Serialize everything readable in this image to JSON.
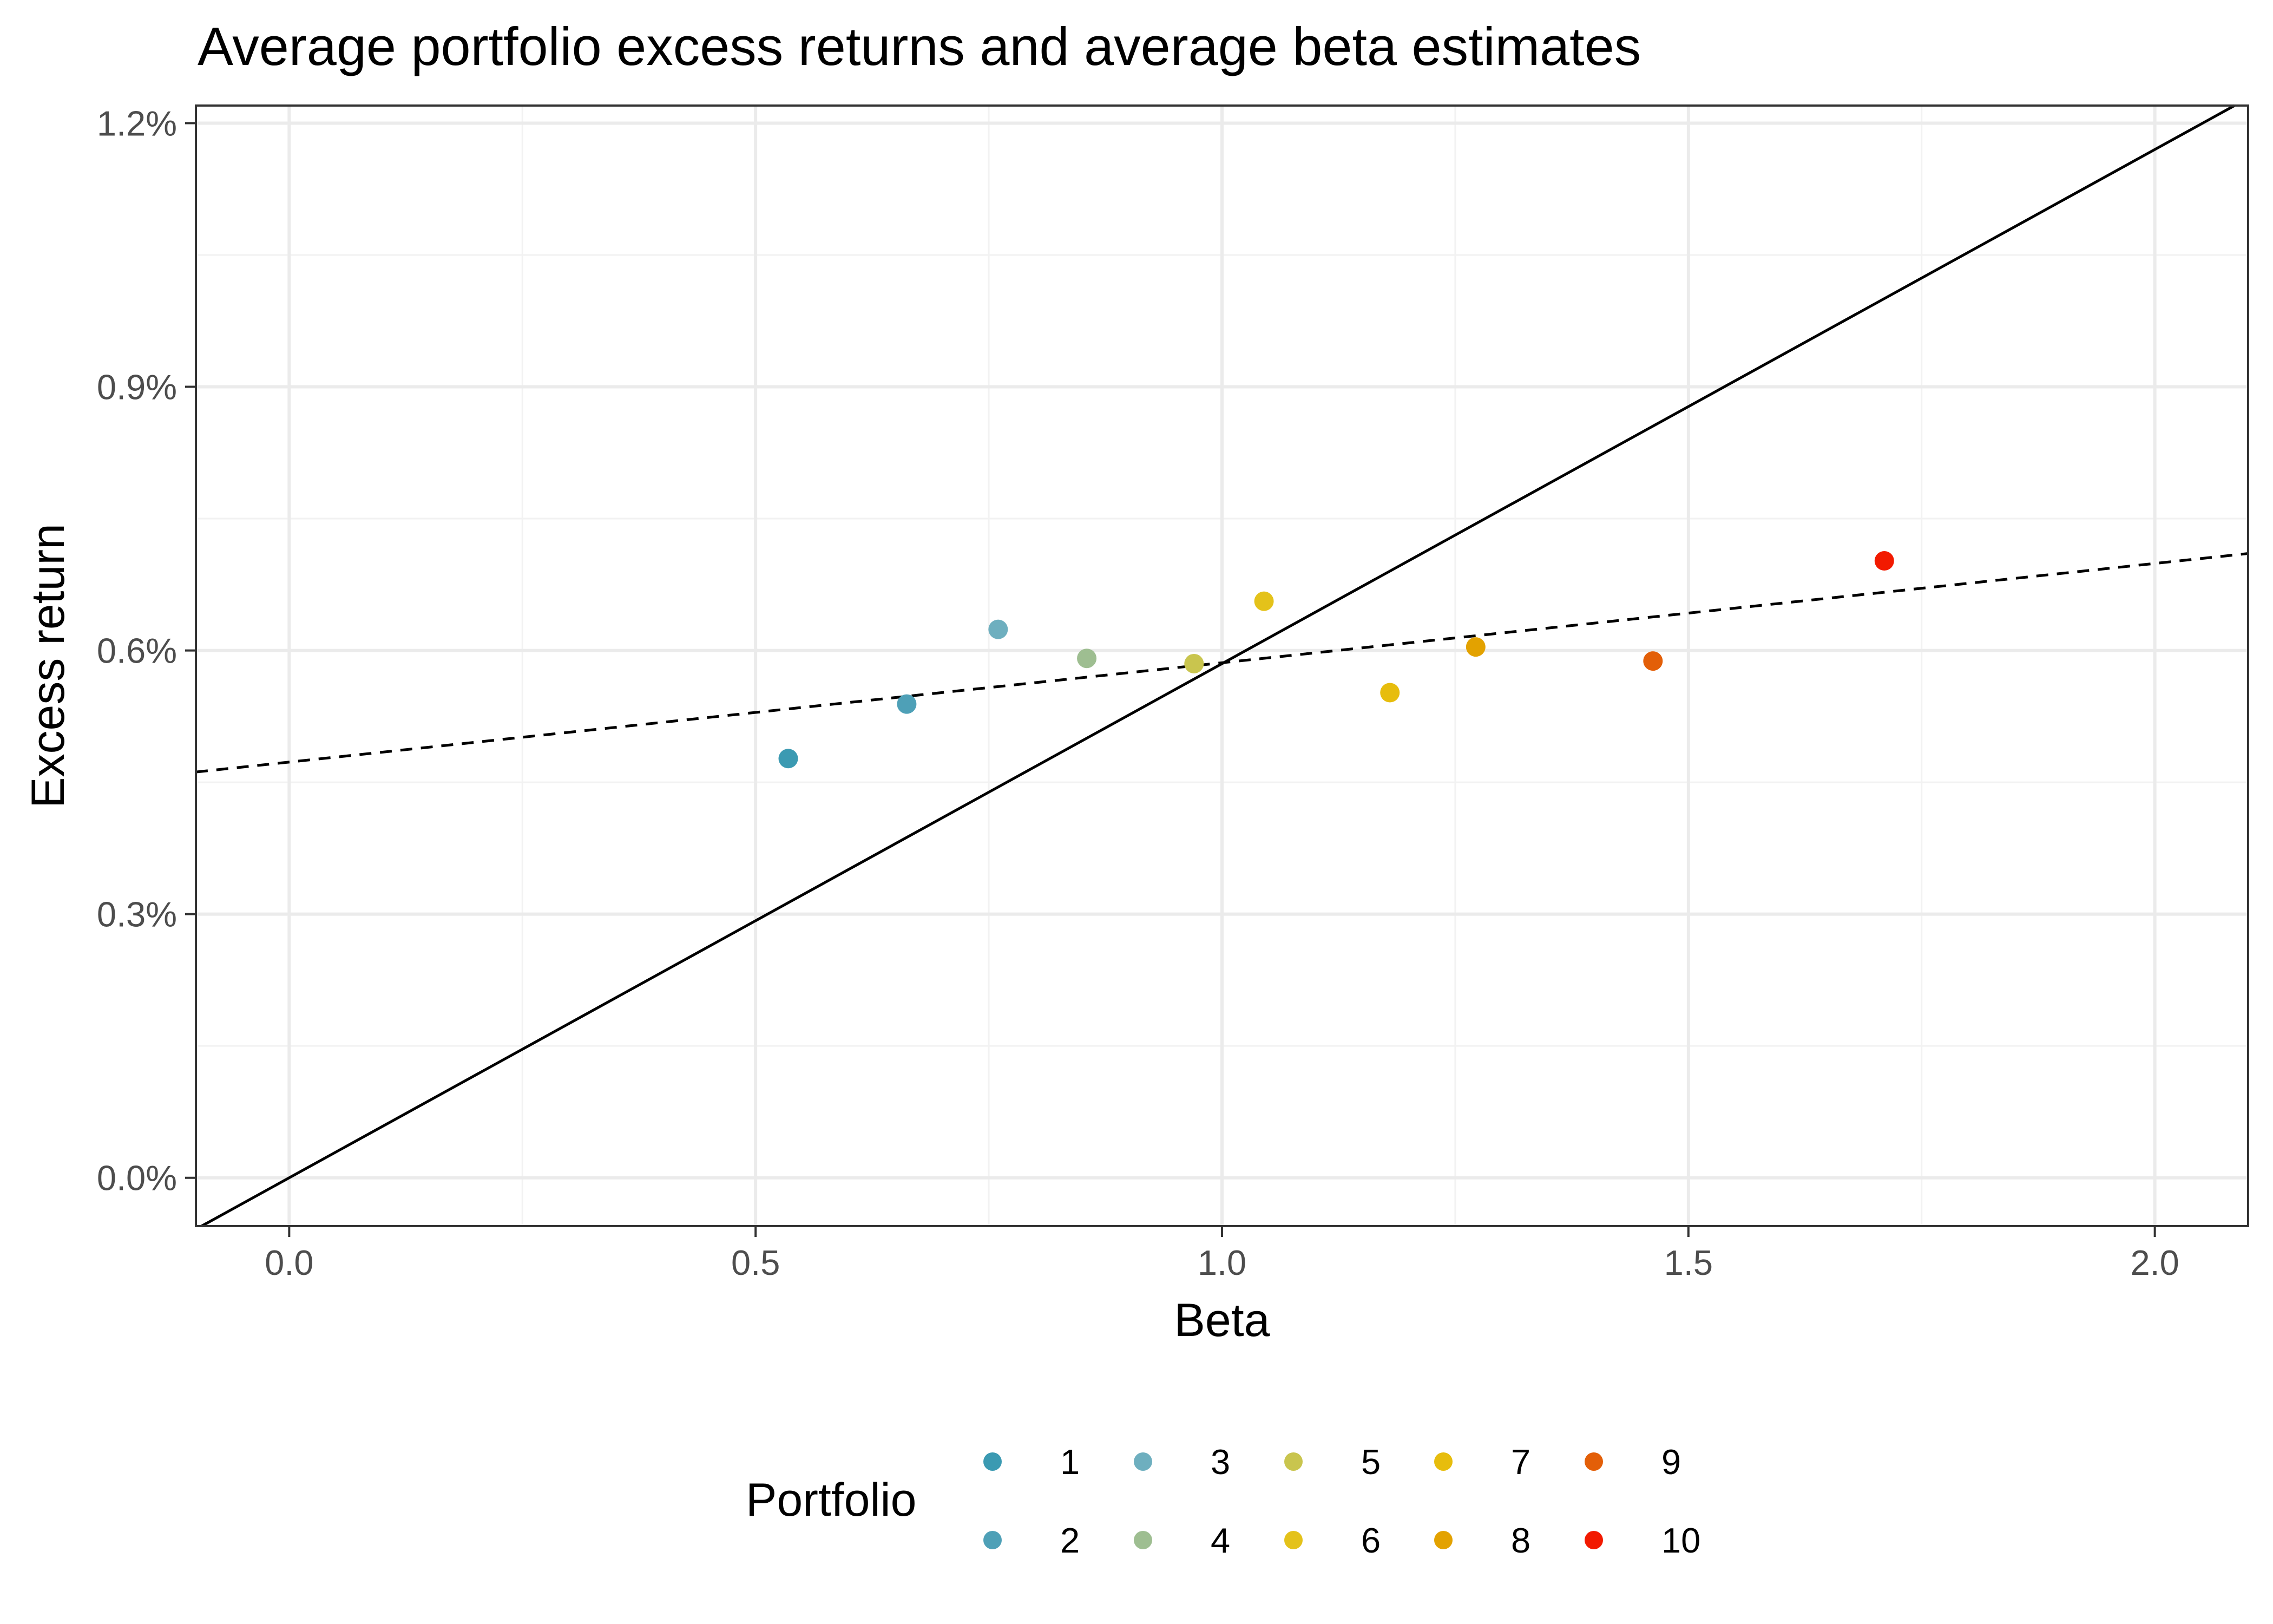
{
  "chart_data": {
    "type": "scatter",
    "title": "Average portfolio excess returns and average beta estimates",
    "xlabel": "Beta",
    "ylabel": "Excess return",
    "xlim": [
      -0.1,
      2.1
    ],
    "ylim": [
      -0.00055,
      0.0122
    ],
    "x_ticks": [
      0.0,
      0.5,
      1.0,
      1.5,
      2.0
    ],
    "x_tick_labels": [
      "0.0",
      "0.5",
      "1.0",
      "1.5",
      "2.0"
    ],
    "y_ticks": [
      0.0,
      0.003,
      0.006,
      0.009,
      0.012
    ],
    "y_tick_labels": [
      "0.0%",
      "0.3%",
      "0.6%",
      "0.9%",
      "1.2%"
    ],
    "grid": true,
    "legend": {
      "title": "Portfolio",
      "placement": "bottom",
      "entries": [
        "1",
        "2",
        "3",
        "4",
        "5",
        "6",
        "7",
        "8",
        "9",
        "10"
      ]
    },
    "points": [
      {
        "portfolio": "1",
        "beta": 0.535,
        "excess_return": 0.00477,
        "color": "#3B9AB2"
      },
      {
        "portfolio": "2",
        "beta": 0.662,
        "excess_return": 0.00539,
        "color": "#4EA0B7"
      },
      {
        "portfolio": "3",
        "beta": 0.76,
        "excess_return": 0.00624,
        "color": "#6EAFBF"
      },
      {
        "portfolio": "4",
        "beta": 0.855,
        "excess_return": 0.00591,
        "color": "#9EBE91"
      },
      {
        "portfolio": "5",
        "beta": 0.97,
        "excess_return": 0.00585,
        "color": "#C9C54E"
      },
      {
        "portfolio": "6",
        "beta": 1.045,
        "excess_return": 0.00656,
        "color": "#E4C21A"
      },
      {
        "portfolio": "7",
        "beta": 1.18,
        "excess_return": 0.00552,
        "color": "#E7BD0D"
      },
      {
        "portfolio": "8",
        "beta": 1.272,
        "excess_return": 0.00604,
        "color": "#E3A200"
      },
      {
        "portfolio": "9",
        "beta": 1.462,
        "excess_return": 0.00588,
        "color": "#E35F08"
      },
      {
        "portfolio": "10",
        "beta": 1.71,
        "excess_return": 0.00702,
        "color": "#F21A00"
      }
    ],
    "lines": [
      {
        "style": "solid",
        "intercept": 0.0,
        "slope": 0.00585
      },
      {
        "style": "dashed",
        "intercept": 0.00473,
        "slope": 0.00113
      }
    ]
  }
}
